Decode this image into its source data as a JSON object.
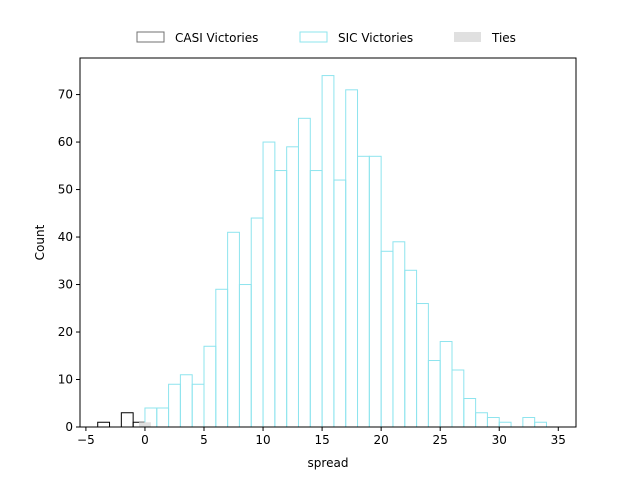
{
  "chart_data": {
    "type": "bar",
    "title": "",
    "xlabel": "spread",
    "ylabel": "Count",
    "xlim": [
      -5.5,
      36.5
    ],
    "ylim": [
      0,
      77.7
    ],
    "x_ticks": [
      -5,
      0,
      5,
      10,
      15,
      20,
      25,
      30,
      35
    ],
    "y_ticks": [
      0,
      10,
      20,
      30,
      40,
      50,
      60,
      70
    ],
    "grid": false,
    "legend_position": "top-center",
    "bin_width": 1,
    "series": [
      {
        "name": "CASI Victories",
        "color": "#000000",
        "legend_color": "#707070",
        "style": "outline",
        "bins": [
          {
            "x": -4,
            "count": 1
          },
          {
            "x": -2,
            "count": 3
          },
          {
            "x": -1,
            "count": 1
          }
        ]
      },
      {
        "name": "SIC Victories",
        "color": "#8ee4ee",
        "style": "outline",
        "bins": [
          {
            "x": 0,
            "count": 4
          },
          {
            "x": 1,
            "count": 4
          },
          {
            "x": 2,
            "count": 9
          },
          {
            "x": 3,
            "count": 11
          },
          {
            "x": 4,
            "count": 9
          },
          {
            "x": 5,
            "count": 17
          },
          {
            "x": 6,
            "count": 29
          },
          {
            "x": 7,
            "count": 41
          },
          {
            "x": 8,
            "count": 30
          },
          {
            "x": 9,
            "count": 44
          },
          {
            "x": 10,
            "count": 60
          },
          {
            "x": 11,
            "count": 54
          },
          {
            "x": 12,
            "count": 59
          },
          {
            "x": 13,
            "count": 65
          },
          {
            "x": 14,
            "count": 54
          },
          {
            "x": 15,
            "count": 74
          },
          {
            "x": 16,
            "count": 52
          },
          {
            "x": 17,
            "count": 71
          },
          {
            "x": 18,
            "count": 57
          },
          {
            "x": 19,
            "count": 57
          },
          {
            "x": 20,
            "count": 37
          },
          {
            "x": 21,
            "count": 39
          },
          {
            "x": 22,
            "count": 33
          },
          {
            "x": 23,
            "count": 26
          },
          {
            "x": 24,
            "count": 14
          },
          {
            "x": 25,
            "count": 18
          },
          {
            "x": 26,
            "count": 12
          },
          {
            "x": 27,
            "count": 6
          },
          {
            "x": 28,
            "count": 3
          },
          {
            "x": 29,
            "count": 2
          },
          {
            "x": 30,
            "count": 1
          },
          {
            "x": 31,
            "count": 0
          },
          {
            "x": 32,
            "count": 2
          },
          {
            "x": 33,
            "count": 1
          }
        ]
      },
      {
        "name": "Ties",
        "color": "#e0e0e0",
        "style": "filled",
        "bins": [
          {
            "x": -0.5,
            "count": 1
          }
        ]
      }
    ]
  }
}
